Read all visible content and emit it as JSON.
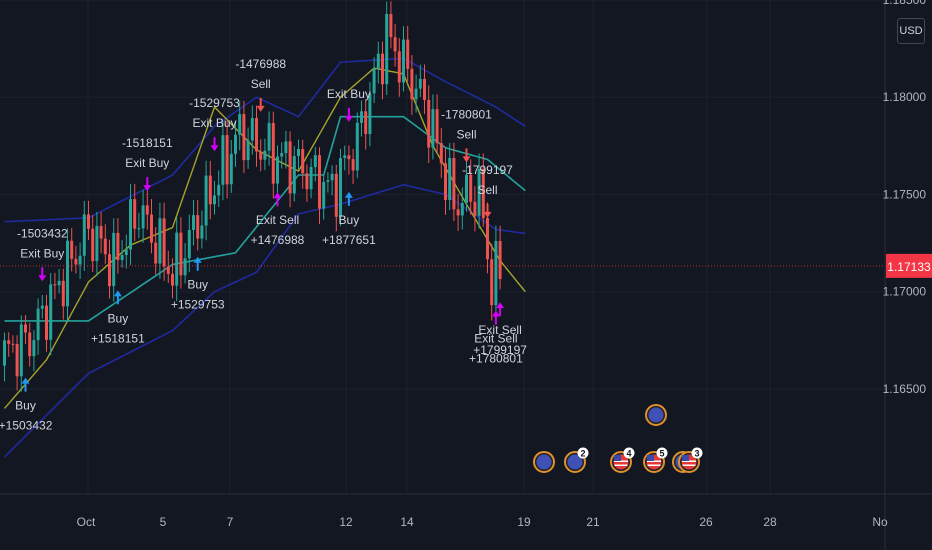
{
  "colors": {
    "background": "#131722",
    "grid": "#1c2030",
    "axis_text": "#b2b5be",
    "up": "#26a69a",
    "down": "#ef5350",
    "ma_yellow": "#a6a32a",
    "ma_teal": "#22a39c",
    "band_blue": "#1f2a9e",
    "signal_blue": "#2196f3",
    "exit_magenta": "#d500f9",
    "price_tag": "#f23645",
    "label_text": "#d1d4dc"
  },
  "ui": {
    "currency": "USD"
  },
  "chart_data": {
    "type": "candlestick",
    "title": "",
    "grid": true,
    "x_ticks": [
      "Oct",
      "5",
      "7",
      "12",
      "14",
      "19",
      "21",
      "26",
      "28",
      "No"
    ],
    "y_ticks": [
      "1.18500",
      "1.18000",
      "1.17500",
      "1.17000",
      "1.16500"
    ],
    "y_range": [
      1.1596,
      1.185
    ],
    "last_price": "1.17133",
    "last_value": 1.17133,
    "bar_count": 118,
    "keyframes": [
      [
        0,
        1.1668
      ],
      [
        6,
        1.1675
      ],
      [
        14,
        1.1708
      ],
      [
        20,
        1.1732
      ],
      [
        26,
        1.1714
      ],
      [
        32,
        1.1742
      ],
      [
        40,
        1.1709
      ],
      [
        48,
        1.1745
      ],
      [
        56,
        1.1782
      ],
      [
        64,
        1.177
      ],
      [
        70,
        1.1765
      ],
      [
        78,
        1.1752
      ],
      [
        84,
        1.1778
      ],
      [
        91,
        1.1832
      ],
      [
        100,
        1.1797
      ],
      [
        107,
        1.1745
      ],
      [
        113,
        1.1752
      ],
      [
        116,
        1.1704
      ],
      [
        122,
        1.173
      ],
      [
        124,
        1.1713
      ]
    ],
    "indicators": {
      "ma_yellow": [
        [
          0,
          1.164
        ],
        [
          10,
          1.1665
        ],
        [
          20,
          1.1705
        ],
        [
          30,
          1.1724
        ],
        [
          40,
          1.1733
        ],
        [
          50,
          1.1795
        ],
        [
          60,
          1.1773
        ],
        [
          70,
          1.1762
        ],
        [
          80,
          1.18
        ],
        [
          88,
          1.1815
        ],
        [
          95,
          1.1812
        ],
        [
          102,
          1.1775
        ],
        [
          110,
          1.1745
        ],
        [
          118,
          1.1716
        ],
        [
          124,
          1.17
        ]
      ],
      "ma_teal": [
        [
          0,
          1.1685
        ],
        [
          20,
          1.1685
        ],
        [
          40,
          1.1714
        ],
        [
          55,
          1.172
        ],
        [
          70,
          1.176
        ],
        [
          76,
          1.176
        ],
        [
          80,
          1.179
        ],
        [
          95,
          1.179
        ],
        [
          105,
          1.1774
        ],
        [
          115,
          1.1768
        ],
        [
          124,
          1.1752
        ]
      ],
      "band_upper": [
        [
          0,
          1.1736
        ],
        [
          20,
          1.1738
        ],
        [
          40,
          1.176
        ],
        [
          50,
          1.1785
        ],
        [
          60,
          1.18
        ],
        [
          70,
          1.179
        ],
        [
          80,
          1.1818
        ],
        [
          95,
          1.182
        ],
        [
          105,
          1.1808
        ],
        [
          117,
          1.1795
        ],
        [
          124,
          1.1785
        ]
      ],
      "band_lower": [
        [
          0,
          1.1615
        ],
        [
          20,
          1.1658
        ],
        [
          40,
          1.168
        ],
        [
          50,
          1.17
        ],
        [
          60,
          1.171
        ],
        [
          70,
          1.174
        ],
        [
          80,
          1.1745
        ],
        [
          95,
          1.1755
        ],
        [
          105,
          1.175
        ],
        [
          117,
          1.1732
        ],
        [
          124,
          1.173
        ]
      ]
    },
    "signals": [
      {
        "kind": "buy",
        "bar": 5,
        "lines": [
          "Buy",
          "+1503432"
        ]
      },
      {
        "kind": "exit_buy",
        "bar": 9,
        "lines": [
          "-1503432",
          "Exit Buy"
        ]
      },
      {
        "kind": "buy",
        "bar": 27,
        "lines": [
          "Buy",
          "+1518151"
        ]
      },
      {
        "kind": "exit_buy",
        "bar": 34,
        "lines": [
          "-1518151",
          "Exit Buy"
        ]
      },
      {
        "kind": "buy",
        "bar": 46,
        "lines": [
          "Buy",
          "+1529753"
        ]
      },
      {
        "kind": "exit_buy",
        "bar": 50,
        "lines": [
          "-1529753",
          "Exit Buy"
        ]
      },
      {
        "kind": "sell",
        "bar": 61,
        "lines": [
          "-1476988",
          "Sell"
        ]
      },
      {
        "kind": "exit_sell",
        "bar": 65,
        "lines": [
          "Exit Sell",
          "+1476988"
        ]
      },
      {
        "kind": "buy",
        "bar": 82,
        "lines": [
          "Buy",
          "+1877651"
        ]
      },
      {
        "kind": "exit_buy",
        "bar": 82,
        "lines": [
          "Exit Buy"
        ]
      },
      {
        "kind": "sell",
        "bar": 110,
        "lines": [
          "-1780801",
          "Sell"
        ]
      },
      {
        "kind": "exit_sell",
        "bar": 117,
        "lines": [
          "Exit Sell",
          "+1780801"
        ]
      },
      {
        "kind": "sell",
        "bar": 115,
        "lines": [
          "-1799197",
          "Sell"
        ]
      },
      {
        "kind": "exit_sell",
        "bar": 128,
        "lines": [
          "Exit Sell",
          "+1799197"
        ]
      }
    ],
    "events": [
      {
        "flag": "eu",
        "count": ""
      },
      {
        "flag": "eu",
        "count": "2"
      },
      {
        "flag": "us",
        "count": "4"
      },
      {
        "flag": "eu",
        "count": ""
      },
      {
        "flag": "us",
        "count": "5"
      },
      {
        "flag": "eu",
        "count": ""
      },
      {
        "flag": "us",
        "count": "3"
      }
    ]
  }
}
